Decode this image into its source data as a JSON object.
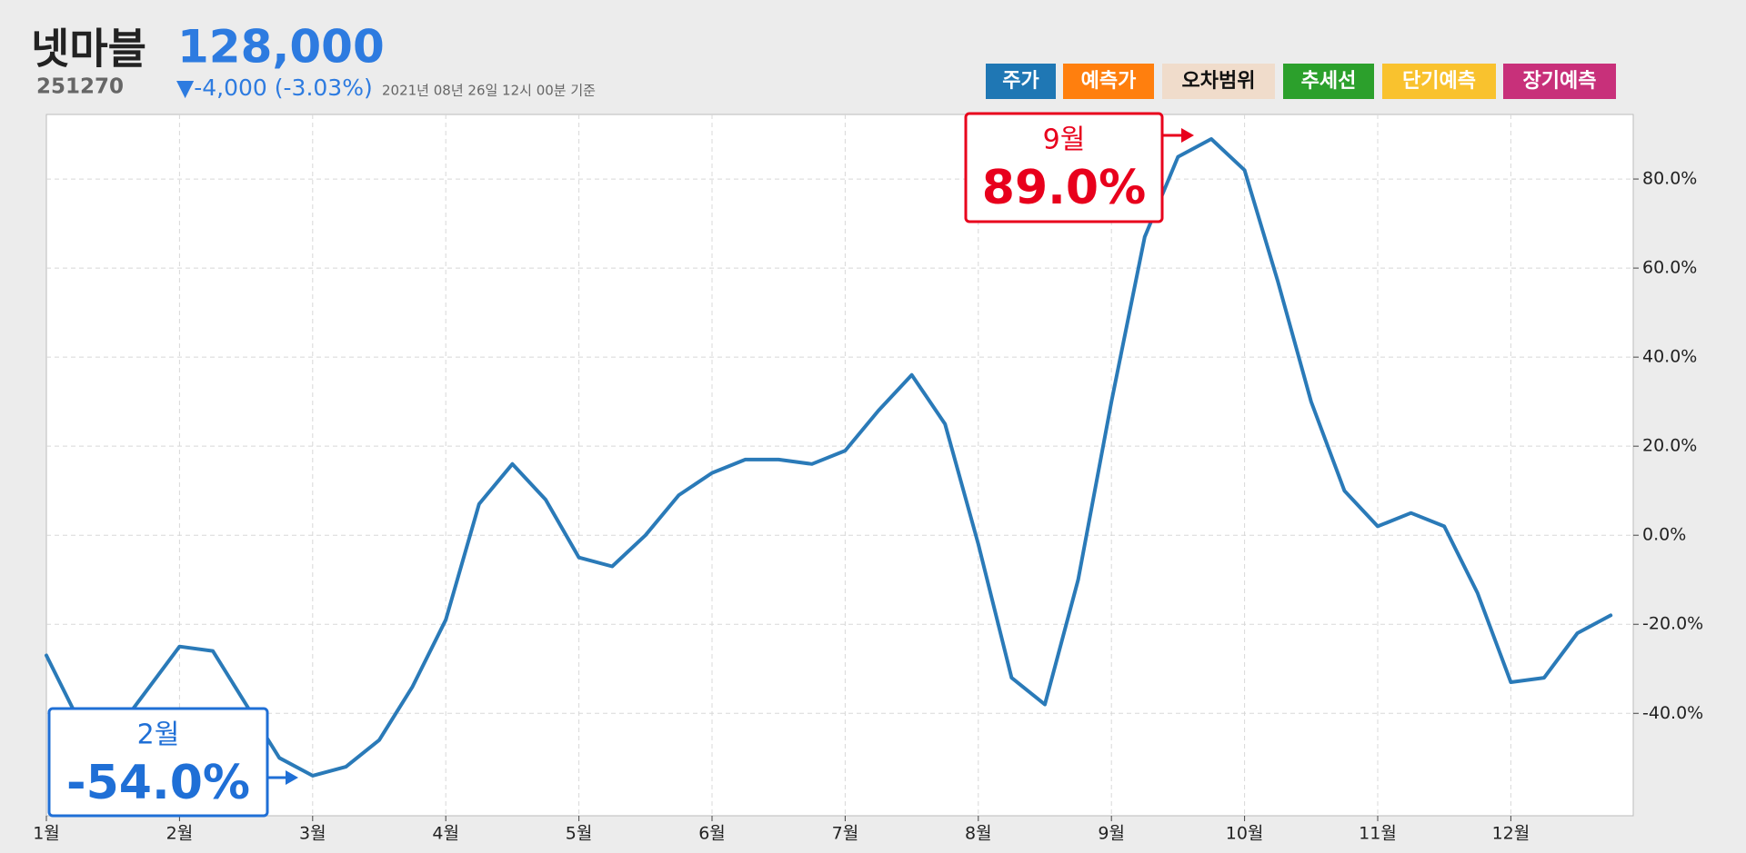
{
  "header": {
    "name": "넷마블",
    "price": "128,000",
    "code": "251270",
    "change": "▼-4,000 (-3.03%)",
    "timestamp": "2021년 08년 26일 12시 00분 기준"
  },
  "legend": [
    {
      "name": "주가",
      "color": "#1f77b4"
    },
    {
      "name": "예측가",
      "color": "#ff7f0e"
    },
    {
      "name": "오차범위",
      "color": "#f0dccb"
    },
    {
      "name": "추세선",
      "color": "#2ca02c"
    },
    {
      "name": "단기예측",
      "color": "#f9c22e"
    },
    {
      "name": "장기예측",
      "color": "#c8307a"
    }
  ],
  "chart_data": {
    "type": "line",
    "categories": [
      "1월",
      null,
      null,
      null,
      "2월",
      null,
      null,
      null,
      "3월",
      null,
      null,
      null,
      "4월",
      null,
      null,
      null,
      "5월",
      null,
      null,
      null,
      "6월",
      null,
      null,
      null,
      "7월",
      null,
      null,
      null,
      "8월",
      null,
      null,
      null,
      "9월",
      null,
      null,
      null,
      "10월",
      null,
      null,
      null,
      "11월",
      null,
      null,
      null,
      "12월",
      null,
      null,
      null
    ],
    "series": [
      {
        "name": "주가",
        "color": "#2a7ab8",
        "values": [
          -27,
          -42,
          -45,
          -35,
          -25,
          -26,
          -38,
          -50,
          -54,
          -52,
          -46,
          -34,
          -19,
          7,
          16,
          8,
          -5,
          -7,
          0,
          9,
          14,
          17,
          17,
          16,
          19,
          28,
          36,
          25,
          -2,
          -32,
          -38,
          -10,
          30,
          67,
          85,
          89,
          82,
          57,
          30,
          10,
          2,
          5,
          2,
          -13,
          -33,
          -32,
          -22,
          -18
        ]
      }
    ],
    "ylim": [
      -63,
      94.5
    ],
    "yticks": [
      {
        "value": -40,
        "label": "-40.0%"
      },
      {
        "value": -20,
        "label": "-20.0%"
      },
      {
        "value": 0,
        "label": "0.0%"
      },
      {
        "value": 20,
        "label": "20.0%"
      },
      {
        "value": 40,
        "label": "40.0%"
      },
      {
        "value": 60,
        "label": "60.0%"
      },
      {
        "value": 80,
        "label": "80.0%"
      }
    ],
    "grid": true,
    "annotations": [
      {
        "month": "9월",
        "text": "89.0%",
        "color": "#e8001c"
      },
      {
        "month": "2월",
        "text": "-54.0%",
        "color": "#1f6fd6"
      }
    ]
  }
}
